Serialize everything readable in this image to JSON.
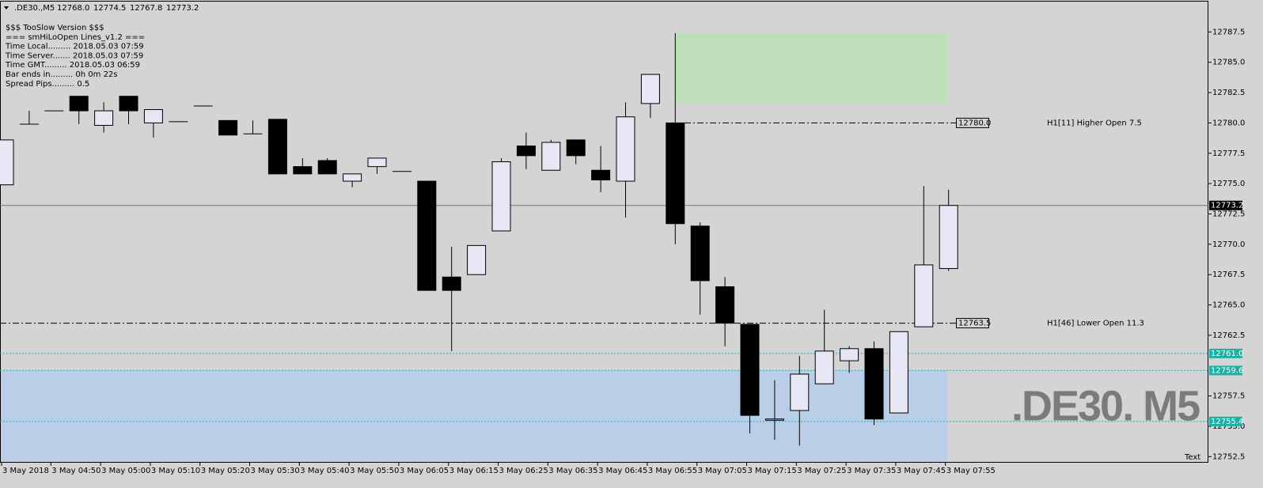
{
  "chart_data": {
    "type": "candlestick",
    "symbol": ".DE30.,M5",
    "header_values": [
      "12768.0",
      "12774.5",
      "12767.8",
      "12773.2"
    ],
    "info_lines": [
      "$$$ TooSlow Version $$$",
      "=== smHiLoOpen Lines_v1.2 ===",
      "Time Local......... 2018.05.03 07:59",
      "Time Server....... 2018.05.03 07:59",
      "Time GMT......... 2018.05.03 06:59",
      "Bar ends in......... 0h 0m 22s",
      "Spread Pips......... 0.5"
    ],
    "watermark": ".DE30. M5",
    "corner_text": "Text",
    "categories": [
      "3 May 2018",
      null,
      "3 May 04:50",
      null,
      "3 May 05:00",
      null,
      "3 May 05:10",
      null,
      "3 May 05:20",
      null,
      "3 May 05:30",
      null,
      "3 May 05:40",
      null,
      "3 May 05:50",
      null,
      "3 May 06:05",
      null,
      "3 May 06:15",
      null,
      "3 May 06:25",
      null,
      "3 May 06:35",
      null,
      "3 May 06:45",
      null,
      "3 May 06:55",
      null,
      "3 May 07:05",
      null,
      "3 May 07:15",
      null,
      "3 May 07:25",
      null,
      "3 May 07:35",
      null,
      "3 May 07:45",
      null,
      "3 May 07:55"
    ],
    "open": [
      12774.9,
      12779.9,
      12781.0,
      12782.2,
      12779.8,
      12782.2,
      12780.0,
      12780.1,
      12781.4,
      12780.2,
      12779.1,
      12780.3,
      12776.4,
      12776.9,
      12775.2,
      12776.4,
      12776.0,
      12775.2,
      12767.3,
      12767.5,
      12771.1,
      12778.1,
      12776.1,
      12778.6,
      12776.1,
      12775.2,
      12781.6,
      12780.0,
      12771.5,
      12766.5,
      12763.4,
      12755.5,
      12756.3,
      12758.5,
      12760.4,
      12761.4,
      12756.1,
      12763.2,
      12768.0
    ],
    "high": [
      12778.6,
      12781.0,
      12781.0,
      12782.2,
      12781.7,
      12782.2,
      12781.1,
      12780.1,
      12781.4,
      12780.2,
      12780.2,
      12780.3,
      12777.1,
      12777.1,
      12775.8,
      12777.1,
      12776.0,
      12775.2,
      12769.8,
      12769.9,
      12777.1,
      12779.2,
      12778.6,
      12778.6,
      12778.1,
      12781.7,
      12784.0,
      12787.4,
      12771.8,
      12767.3,
      12763.4,
      12758.8,
      12760.8,
      12764.6,
      12761.6,
      12762.0,
      12762.8,
      12774.8,
      12774.5
    ],
    "low": [
      12774.9,
      12779.9,
      12781.0,
      12779.9,
      12779.2,
      12779.9,
      12778.8,
      12780.1,
      12781.4,
      12779.0,
      12779.1,
      12775.8,
      12775.8,
      12775.8,
      12774.7,
      12775.8,
      12776.0,
      12766.2,
      12761.2,
      12767.5,
      12771.1,
      12776.2,
      12776.1,
      12776.6,
      12774.3,
      12772.2,
      12780.4,
      12770.0,
      12764.2,
      12761.6,
      12754.4,
      12753.9,
      12753.4,
      12758.5,
      12759.4,
      12755.1,
      12756.1,
      12763.2,
      12767.8
    ],
    "close": [
      12778.6,
      12779.9,
      12781.0,
      12781.0,
      12781.0,
      12781.0,
      12781.1,
      12780.1,
      12781.4,
      12779.0,
      12779.1,
      12775.8,
      12775.8,
      12775.8,
      12775.8,
      12777.1,
      12776.0,
      12766.2,
      12766.2,
      12769.9,
      12776.8,
      12777.3,
      12778.4,
      12777.3,
      12775.3,
      12780.5,
      12784.0,
      12771.7,
      12767.0,
      12763.5,
      12755.9,
      12755.6,
      12759.3,
      12761.2,
      12761.4,
      12755.6,
      12762.8,
      12768.3,
      12773.2
    ],
    "up_color": "#e6e6f5",
    "down_color": "#000000",
    "ylim": [
      12752.0,
      12790.0
    ],
    "yticks": [
      12787.5,
      {
        "value": 12785,
        "label": "12785.0"
      },
      12782.5,
      {
        "value": 12780,
        "label": "12780.0"
      },
      12777.5,
      {
        "value": 12775,
        "label": "12775.0"
      },
      12772.5,
      {
        "value": 12770,
        "label": "12770.0"
      },
      12767.5,
      {
        "value": 12765,
        "label": "12765.0"
      },
      12762.5,
      12757.5,
      {
        "value": 12755,
        "label": "12755.0"
      },
      12752.5
    ],
    "current_price": 12773.2,
    "levels": [
      {
        "price": {
          "value": 12780,
          "label": "12780.0"
        },
        "text": "H1[11] Higher Open 7.5"
      },
      {
        "price": 12763.5,
        "text": "H1[46] Lower Open 11.3"
      }
    ],
    "marker_lines": [
      {
        "value": 12761,
        "label": "12761.0"
      },
      12759.6,
      12755.4
    ],
    "zones": [
      {
        "color": "#bfdfbb",
        "from": 12781.7,
        "to": 12787.4
      },
      {
        "color": "#bacee7",
        "from": 12752.0,
        "to": 12759.6
      }
    ]
  }
}
